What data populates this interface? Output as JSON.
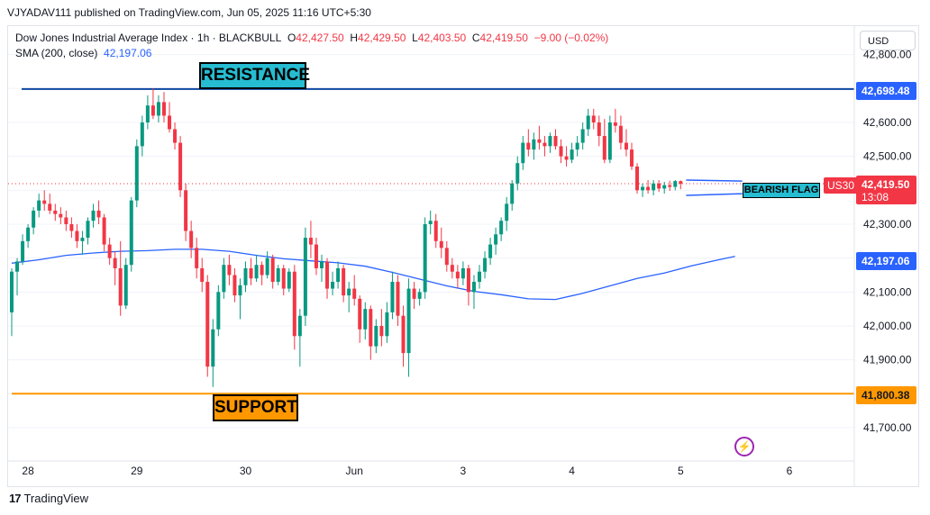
{
  "publisher": "VJYADAV111 published on TradingView.com, Jun 05, 2025 11:16 UTC+5:30",
  "legend": {
    "title": "Dow Jones Industrial Average Index · 1h · BLACKBULL",
    "o_label": "O",
    "o": "42,427.50",
    "h_label": "H",
    "h": "42,429.50",
    "l_label": "L",
    "l": "42,403.50",
    "c_label": "C",
    "c": "42,419.50",
    "change": "−9.00 (−0.02%)",
    "sma_label": "SMA (200, close)",
    "sma_value": "42,197.06"
  },
  "currency": "USD",
  "price_tags": {
    "resistance": "42,698.48",
    "sma": "42,197.06",
    "support": "41,800.38",
    "last_price": "42,419.50",
    "countdown": "13:08",
    "symbol": "US30"
  },
  "annotations": {
    "resistance": "RESISTANCE",
    "support": "SUPPORT",
    "flag": "BEARISH FLAG"
  },
  "brand": "TradingView",
  "colors": {
    "up": "#089981",
    "down": "#f23645",
    "sma": "#2962ff",
    "resistance": "#0d47a1",
    "support": "#ff9800",
    "annotation": "#26bcd1"
  },
  "chart_data": {
    "type": "candlestick",
    "interval": "1h",
    "y_ticks": [
      41700,
      41800,
      41900,
      42000,
      42100,
      42200,
      42300,
      42400,
      42500,
      42600,
      42700,
      42800
    ],
    "y_tick_labels": [
      "41,700.00",
      "41,800.00",
      "41,900.00",
      "42,000.00",
      "42,100.00",
      "42,200.00",
      "42,300.00",
      "42,400.00",
      "42,500.00",
      "42,600.00",
      "42,700.00",
      "42,800.00"
    ],
    "x_ticks": [
      {
        "label": "28",
        "bar": 3
      },
      {
        "label": "29",
        "bar": 23
      },
      {
        "label": "30",
        "bar": 43
      },
      {
        "label": "Jun",
        "bar": 63
      },
      {
        "label": "3",
        "bar": 83
      },
      {
        "label": "4",
        "bar": 103
      },
      {
        "label": "5",
        "bar": 123
      },
      {
        "label": "6",
        "bar": 143
      }
    ],
    "resistance": 42698.48,
    "support": 41800.38,
    "last_price": 42419.5,
    "bearish_flag": {
      "from_bar": 125,
      "to_bar": 133,
      "upper": [
        42430,
        42427
      ],
      "lower": [
        42385,
        42390
      ]
    },
    "sma_200": [
      [
        0,
        42185
      ],
      [
        5,
        42195
      ],
      [
        10,
        42208
      ],
      [
        15,
        42215
      ],
      [
        20,
        42220
      ],
      [
        25,
        42222
      ],
      [
        30,
        42226
      ],
      [
        35,
        42226
      ],
      [
        40,
        42220
      ],
      [
        45,
        42208
      ],
      [
        50,
        42198
      ],
      [
        55,
        42192
      ],
      [
        60,
        42186
      ],
      [
        65,
        42176
      ],
      [
        70,
        42158
      ],
      [
        75,
        42138
      ],
      [
        80,
        42118
      ],
      [
        85,
        42102
      ],
      [
        90,
        42092
      ],
      [
        95,
        42080
      ],
      [
        100,
        42078
      ],
      [
        105,
        42096
      ],
      [
        110,
        42118
      ],
      [
        115,
        42140
      ],
      [
        120,
        42156
      ],
      [
        125,
        42177
      ],
      [
        130,
        42195
      ],
      [
        133,
        42205
      ]
    ],
    "ohlc": [
      [
        42040,
        42170,
        41970,
        42160
      ],
      [
        42160,
        42200,
        42090,
        42190
      ],
      [
        42190,
        42270,
        42180,
        42250
      ],
      [
        42250,
        42300,
        42230,
        42290
      ],
      [
        42290,
        42350,
        42270,
        42340
      ],
      [
        42340,
        42390,
        42320,
        42370
      ],
      [
        42370,
        42400,
        42340,
        42360
      ],
      [
        42360,
        42390,
        42330,
        42340
      ],
      [
        42340,
        42360,
        42310,
        42330
      ],
      [
        42330,
        42350,
        42300,
        42320
      ],
      [
        42320,
        42340,
        42280,
        42300
      ],
      [
        42300,
        42320,
        42260,
        42280
      ],
      [
        42280,
        42300,
        42230,
        42250
      ],
      [
        42250,
        42280,
        42210,
        42260
      ],
      [
        42260,
        42320,
        42240,
        42310
      ],
      [
        42310,
        42360,
        42290,
        42340
      ],
      [
        42340,
        42370,
        42300,
        42320
      ],
      [
        42320,
        42330,
        42220,
        42240
      ],
      [
        42240,
        42260,
        42180,
        42200
      ],
      [
        42200,
        42220,
        42120,
        42170
      ],
      [
        42170,
        42250,
        42030,
        42060
      ],
      [
        42060,
        42200,
        42050,
        42180
      ],
      [
        42180,
        42380,
        42160,
        42370
      ],
      [
        42370,
        42550,
        42350,
        42530
      ],
      [
        42530,
        42620,
        42500,
        42600
      ],
      [
        42600,
        42680,
        42580,
        42650
      ],
      [
        42650,
        42700,
        42610,
        42620
      ],
      [
        42620,
        42680,
        42600,
        42660
      ],
      [
        42660,
        42690,
        42600,
        42620
      ],
      [
        42620,
        42660,
        42570,
        42580
      ],
      [
        42580,
        42600,
        42520,
        42540
      ],
      [
        42540,
        42560,
        42380,
        42400
      ],
      [
        42400,
        42420,
        42250,
        42280
      ],
      [
        42280,
        42310,
        42200,
        42230
      ],
      [
        42230,
        42260,
        42140,
        42170
      ],
      [
        42170,
        42200,
        42100,
        42130
      ],
      [
        42130,
        42150,
        41850,
        41880
      ],
      [
        41880,
        42020,
        41820,
        41990
      ],
      [
        41990,
        42120,
        41970,
        42100
      ],
      [
        42100,
        42200,
        42080,
        42180
      ],
      [
        42180,
        42210,
        42120,
        42150
      ],
      [
        42150,
        42170,
        42070,
        42090
      ],
      [
        42090,
        42140,
        42020,
        42120
      ],
      [
        42120,
        42190,
        42100,
        42170
      ],
      [
        42170,
        42200,
        42120,
        42140
      ],
      [
        42140,
        42210,
        42130,
        42180
      ],
      [
        42180,
        42190,
        42120,
        42150
      ],
      [
        42150,
        42220,
        42140,
        42200
      ],
      [
        42200,
        42210,
        42110,
        42130
      ],
      [
        42130,
        42180,
        42120,
        42170
      ],
      [
        42170,
        42180,
        42090,
        42110
      ],
      [
        42110,
        42170,
        42100,
        42160
      ],
      [
        42160,
        42180,
        41930,
        41970
      ],
      [
        41970,
        42050,
        41880,
        42030
      ],
      [
        42030,
        42290,
        42000,
        42260
      ],
      [
        42260,
        42310,
        42200,
        42240
      ],
      [
        42240,
        42260,
        42150,
        42170
      ],
      [
        42170,
        42210,
        42130,
        42190
      ],
      [
        42190,
        42200,
        42080,
        42110
      ],
      [
        42110,
        42160,
        42090,
        42130
      ],
      [
        42130,
        42190,
        42110,
        42170
      ],
      [
        42170,
        42180,
        42070,
        42090
      ],
      [
        42090,
        42130,
        42040,
        42110
      ],
      [
        42110,
        42150,
        42060,
        42080
      ],
      [
        42080,
        42090,
        41950,
        41990
      ],
      [
        41990,
        42070,
        41960,
        42050
      ],
      [
        42050,
        42060,
        41900,
        41940
      ],
      [
        41940,
        42020,
        41920,
        42000
      ],
      [
        42000,
        42050,
        41940,
        41970
      ],
      [
        41970,
        42070,
        41950,
        42040
      ],
      [
        42040,
        42160,
        42020,
        42130
      ],
      [
        42130,
        42150,
        42000,
        42030
      ],
      [
        42030,
        42060,
        41880,
        41920
      ],
      [
        41920,
        42140,
        41850,
        42110
      ],
      [
        42110,
        42130,
        42050,
        42080
      ],
      [
        42080,
        42110,
        42060,
        42100
      ],
      [
        42100,
        42320,
        42080,
        42300
      ],
      [
        42300,
        42340,
        42270,
        42310
      ],
      [
        42310,
        42330,
        42230,
        42250
      ],
      [
        42250,
        42290,
        42200,
        42230
      ],
      [
        42230,
        42250,
        42160,
        42180
      ],
      [
        42180,
        42200,
        42140,
        42160
      ],
      [
        42160,
        42180,
        42110,
        42140
      ],
      [
        42140,
        42190,
        42120,
        42170
      ],
      [
        42170,
        42180,
        42060,
        42100
      ],
      [
        42100,
        42150,
        42050,
        42130
      ],
      [
        42130,
        42180,
        42110,
        42160
      ],
      [
        42160,
        42220,
        42140,
        42200
      ],
      [
        42200,
        42260,
        42180,
        42240
      ],
      [
        42240,
        42290,
        42210,
        42270
      ],
      [
        42270,
        42320,
        42250,
        42310
      ],
      [
        42310,
        42380,
        42280,
        42360
      ],
      [
        42360,
        42430,
        42340,
        42420
      ],
      [
        42420,
        42500,
        42400,
        42480
      ],
      [
        42480,
        42560,
        42460,
        42540
      ],
      [
        42540,
        42580,
        42500,
        42520
      ],
      [
        42520,
        42570,
        42490,
        42550
      ],
      [
        42550,
        42590,
        42520,
        42540
      ],
      [
        42540,
        42560,
        42500,
        42530
      ],
      [
        42530,
        42570,
        42510,
        42560
      ],
      [
        42560,
        42580,
        42520,
        42530
      ],
      [
        42530,
        42550,
        42480,
        42500
      ],
      [
        42500,
        42530,
        42470,
        42490
      ],
      [
        42490,
        42540,
        42480,
        42520
      ],
      [
        42520,
        42560,
        42500,
        42540
      ],
      [
        42540,
        42600,
        42520,
        42580
      ],
      [
        42580,
        42640,
        42560,
        42620
      ],
      [
        42620,
        42640,
        42580,
        42600
      ],
      [
        42600,
        42620,
        42530,
        42560
      ],
      [
        42560,
        42610,
        42480,
        42490
      ],
      [
        42490,
        42620,
        42480,
        42600
      ],
      [
        42600,
        42640,
        42570,
        42590
      ],
      [
        42590,
        42620,
        42520,
        42540
      ],
      [
        42540,
        42580,
        42500,
        42520
      ],
      [
        42520,
        42540,
        42460,
        42470
      ],
      [
        42470,
        42480,
        42390,
        42400
      ],
      [
        42400,
        42420,
        42380,
        42410
      ],
      [
        42410,
        42430,
        42390,
        42400
      ],
      [
        42400,
        42430,
        42385,
        42420
      ],
      [
        42420,
        42430,
        42395,
        42405
      ],
      [
        42405,
        42425,
        42390,
        42415
      ],
      [
        42415,
        42428,
        42398,
        42410
      ],
      [
        42410,
        42430,
        42400,
        42427
      ],
      [
        42427,
        42429,
        42403,
        42419
      ]
    ]
  }
}
